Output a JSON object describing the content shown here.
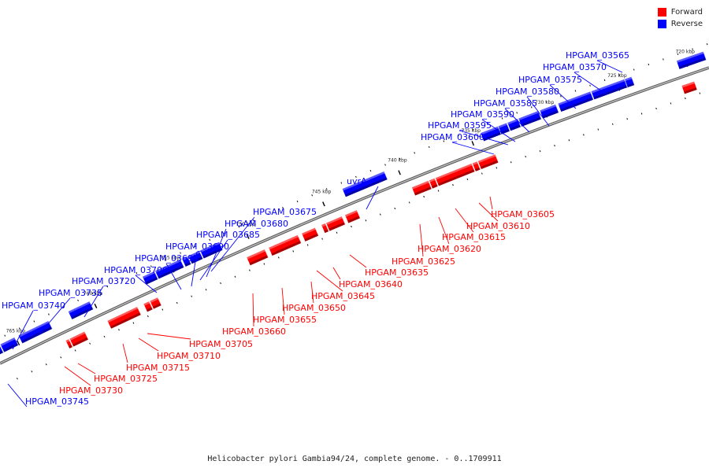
{
  "title": "Helicobacter pylori Gambia94/24, complete genome. - 0..1709911",
  "legend": [
    {
      "label": "Forward",
      "color": "#ff0000"
    },
    {
      "label": "Reverse",
      "color": "#0000ff"
    }
  ],
  "colors": {
    "forward": "#ff0000",
    "reverse": "#0000ff",
    "backbone": "#808080"
  },
  "kbp_labels": [
    "720 kbp",
    "725 kbp",
    "730 kbp",
    "735 kbp",
    "740 kbp",
    "745 kbp",
    "750 kbp",
    "755 kbp",
    "760 kbp",
    "765 kbp"
  ],
  "reverse_genes": [
    "HPGAM_03565",
    "HPGAM_03570",
    "HPGAM_03575",
    "HPGAM_03580",
    "HPGAM_03585",
    "HPGAM_03590",
    "HPGAM_03595",
    "HPGAM_03600",
    "uvrA",
    "HPGAM_03675",
    "HPGAM_03680",
    "HPGAM_03685",
    "HPGAM_03690",
    "HPGAM_03695",
    "HPGAM_03700",
    "HPGAM_03720",
    "HPGAM_03735",
    "HPGAM_03740",
    "HPGAM_03745"
  ],
  "forward_genes": [
    "HPGAM_03605",
    "HPGAM_03610",
    "HPGAM_03615",
    "HPGAM_03620",
    "HPGAM_03625",
    "HPGAM_03635",
    "HPGAM_03640",
    "HPGAM_03645",
    "HPGAM_03650",
    "HPGAM_03655",
    "HPGAM_03660",
    "HPGAM_03705",
    "HPGAM_03710",
    "HPGAM_03715",
    "HPGAM_03725",
    "HPGAM_03730"
  ]
}
